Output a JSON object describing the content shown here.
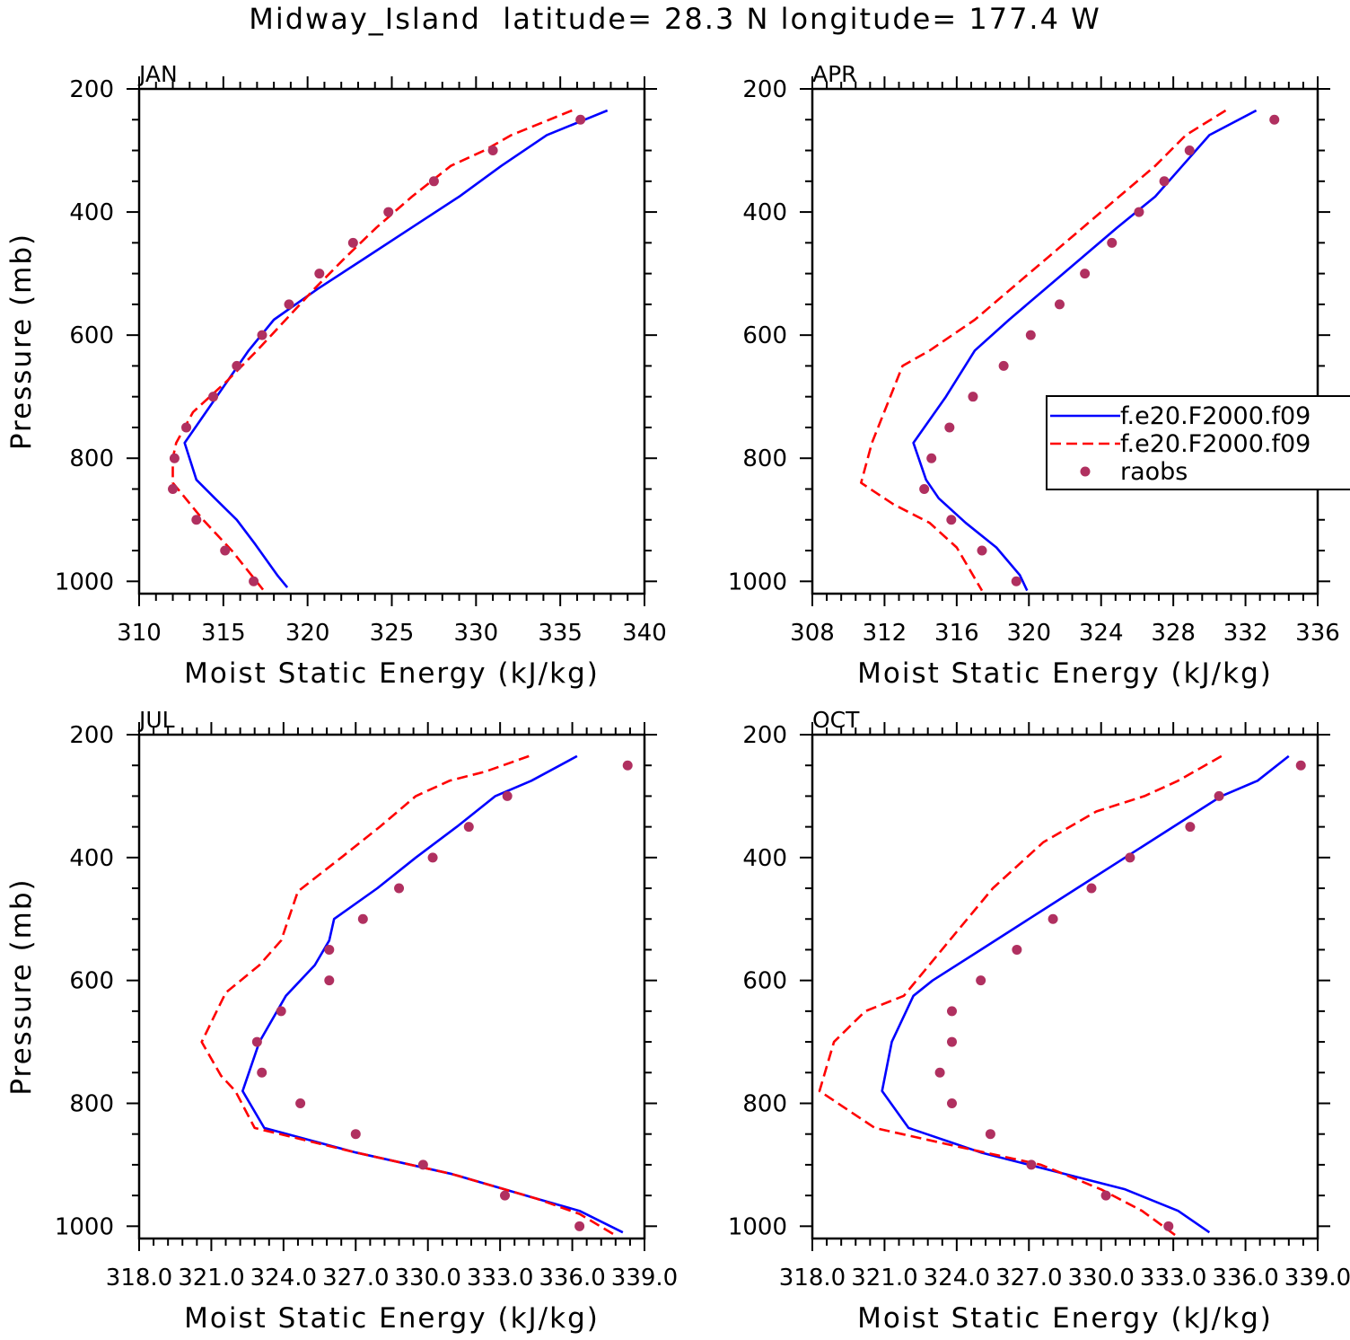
{
  "title": "Midway_Island  latitude= 28.3 N longitude= 177.4 W",
  "colors": {
    "model_solid": "#0000ff",
    "model_dashed": "#ff0000",
    "raobs": "#b03060",
    "axis": "#000000"
  },
  "legend": {
    "entries": [
      {
        "label": "f.e20.F2000.f09",
        "style": "solid"
      },
      {
        "label": "f.e20.F2000.f09",
        "style": "dashed"
      },
      {
        "label": "raobs",
        "style": "marker"
      }
    ]
  },
  "chart_data": [
    {
      "type": "line",
      "panel": "JAN",
      "title": "JAN",
      "xlabel": "Moist Static Energy (kJ/kg)",
      "ylabel": "Pressure (mb)",
      "xlim": [
        310,
        340
      ],
      "ylim": [
        1020,
        200
      ],
      "y_inverted": true,
      "xticks": [
        310,
        315,
        320,
        325,
        330,
        335,
        340
      ],
      "xtick_labels": [
        "310",
        "315",
        "320",
        "325",
        "330",
        "335",
        "340"
      ],
      "yticks": [
        200,
        400,
        600,
        800,
        1000
      ],
      "ytick_labels": [
        "200",
        "400",
        "600",
        "800",
        "1000"
      ],
      "series": [
        {
          "name": "f.e20.F2000.f09",
          "style": "solid",
          "x": [
            337.8,
            334.2,
            331.5,
            329.0,
            326.2,
            323.4,
            320.6,
            318.0,
            316.5,
            314.6,
            312.7,
            313.4,
            314.5,
            315.8,
            316.9,
            318.2,
            318.8
          ],
          "y": [
            235,
            275,
            325,
            375,
            425,
            475,
            525,
            575,
            625,
            700,
            775,
            835,
            865,
            900,
            940,
            990,
            1010
          ]
        },
        {
          "name": "f.e20.F2000.f09",
          "style": "dashed",
          "x": [
            335.7,
            332.1,
            330.5,
            328.5,
            326.2,
            324.1,
            322.2,
            320.4,
            318.7,
            317.0,
            315.2,
            313.2,
            312.2,
            312.0,
            312.0,
            313.8,
            315.5,
            317.4
          ],
          "y": [
            235,
            275,
            300,
            325,
            375,
            425,
            475,
            525,
            575,
            625,
            675,
            725,
            775,
            800,
            840,
            900,
            950,
            1015
          ]
        },
        {
          "name": "raobs",
          "style": "marker",
          "x": [
            336.2,
            331.0,
            327.5,
            324.8,
            322.7,
            320.7,
            318.9,
            317.3,
            315.8,
            314.4,
            312.8,
            312.1,
            312.0,
            313.4,
            315.1,
            316.8
          ],
          "y": [
            250,
            300,
            350,
            400,
            450,
            500,
            550,
            600,
            650,
            700,
            750,
            800,
            850,
            900,
            950,
            1000
          ]
        }
      ]
    },
    {
      "type": "line",
      "panel": "APR",
      "title": "APR",
      "xlabel": "Moist Static Energy (kJ/kg)",
      "ylabel": "",
      "xlim": [
        308,
        336
      ],
      "ylim": [
        1020,
        200
      ],
      "y_inverted": true,
      "xticks": [
        308,
        312,
        316,
        320,
        324,
        328,
        332,
        336
      ],
      "xtick_labels": [
        "308",
        "312",
        "316",
        "320",
        "324",
        "328",
        "332",
        "336"
      ],
      "yticks": [
        200,
        400,
        600,
        800,
        1000
      ],
      "ytick_labels": [
        "200",
        "400",
        "600",
        "800",
        "1000"
      ],
      "series": [
        {
          "name": "f.e20.F2000.f09",
          "style": "solid",
          "x": [
            332.6,
            330.0,
            328.5,
            327.0,
            324.9,
            322.9,
            320.9,
            318.9,
            317.0,
            315.4,
            313.6,
            314.3,
            315.0,
            316.5,
            318.2,
            319.5,
            319.9
          ],
          "y": [
            235,
            275,
            325,
            375,
            425,
            475,
            525,
            575,
            625,
            700,
            775,
            835,
            865,
            905,
            945,
            990,
            1015
          ]
        },
        {
          "name": "f.e20.F2000.f09",
          "style": "dashed",
          "x": [
            330.9,
            328.7,
            327.0,
            325.0,
            323.0,
            321.0,
            319.0,
            317.0,
            314.5,
            313.0,
            311.3,
            310.7,
            312.5,
            314.5,
            316.0,
            317.4
          ],
          "y": [
            235,
            275,
            325,
            375,
            425,
            475,
            525,
            575,
            625,
            650,
            775,
            840,
            875,
            905,
            945,
            1015
          ]
        },
        {
          "name": "raobs",
          "style": "marker",
          "x": [
            333.6,
            328.9,
            327.5,
            326.1,
            324.6,
            323.1,
            321.7,
            320.1,
            318.6,
            316.9,
            315.6,
            314.6,
            314.2,
            315.7,
            317.4,
            319.3
          ],
          "y": [
            250,
            300,
            350,
            400,
            450,
            500,
            550,
            600,
            650,
            700,
            750,
            800,
            850,
            900,
            950,
            1000
          ]
        }
      ]
    },
    {
      "type": "line",
      "panel": "JUL",
      "title": "JUL",
      "xlabel": "Moist Static Energy (kJ/kg)",
      "ylabel": "Pressure (mb)",
      "xlim": [
        318.0,
        339.0
      ],
      "ylim": [
        1020,
        200
      ],
      "y_inverted": true,
      "xticks": [
        318.0,
        321.0,
        324.0,
        327.0,
        330.0,
        333.0,
        336.0,
        339.0
      ],
      "xtick_labels": [
        "318.0",
        "321.0",
        "324.0",
        "327.0",
        "330.0",
        "333.0",
        "336.0",
        "339.0"
      ],
      "yticks": [
        200,
        400,
        600,
        800,
        1000
      ],
      "ytick_labels": [
        "200",
        "400",
        "600",
        "800",
        "1000"
      ],
      "series": [
        {
          "name": "f.e20.F2000.f09",
          "style": "solid",
          "x": [
            336.2,
            334.3,
            332.8,
            331.2,
            329.5,
            327.9,
            326.1,
            325.9,
            325.3,
            324.1,
            323.0,
            322.3,
            323.2,
            327.0,
            331.0,
            334.5,
            336.3,
            338.1
          ],
          "y": [
            235,
            275,
            300,
            350,
            400,
            450,
            500,
            535,
            575,
            625,
            700,
            780,
            840,
            880,
            915,
            955,
            975,
            1010
          ]
        },
        {
          "name": "f.e20.F2000.f09",
          "style": "dashed",
          "x": [
            334.2,
            332.4,
            330.9,
            329.5,
            328.0,
            326.4,
            324.6,
            323.9,
            323.0,
            321.6,
            320.6,
            321.4,
            322.0,
            322.8,
            327.0,
            331.0,
            334.5,
            336.3,
            337.8
          ],
          "y": [
            235,
            260,
            275,
            300,
            350,
            400,
            455,
            535,
            575,
            620,
            700,
            755,
            780,
            840,
            880,
            915,
            955,
            980,
            1015
          ]
        },
        {
          "name": "raobs",
          "style": "marker",
          "x": [
            338.3,
            333.3,
            331.7,
            330.2,
            328.8,
            327.3,
            325.9,
            325.9,
            323.9,
            322.9,
            323.1,
            324.7,
            327.0,
            329.8,
            333.2,
            336.3
          ],
          "y": [
            250,
            300,
            350,
            400,
            450,
            500,
            550,
            600,
            650,
            700,
            750,
            800,
            850,
            900,
            950,
            1000
          ]
        }
      ]
    },
    {
      "type": "line",
      "panel": "OCT",
      "title": "OCT",
      "xlabel": "Moist Static Energy (kJ/kg)",
      "ylabel": "",
      "xlim": [
        318.0,
        339.0
      ],
      "ylim": [
        1020,
        200
      ],
      "y_inverted": true,
      "xticks": [
        318.0,
        321.0,
        324.0,
        327.0,
        330.0,
        333.0,
        336.0,
        339.0
      ],
      "xtick_labels": [
        "318.0",
        "321.0",
        "324.0",
        "327.0",
        "330.0",
        "333.0",
        "336.0",
        "339.0"
      ],
      "yticks": [
        200,
        400,
        600,
        800,
        1000
      ],
      "ytick_labels": [
        "200",
        "400",
        "600",
        "800",
        "1000"
      ],
      "series": [
        {
          "name": "f.e20.F2000.f09",
          "style": "solid",
          "x": [
            337.8,
            336.5,
            335.0,
            333.0,
            331.0,
            329.0,
            327.0,
            325.0,
            323.0,
            322.2,
            321.3,
            320.9,
            322.0,
            325.0,
            328.0,
            331.0,
            333.2,
            334.5
          ],
          "y": [
            235,
            275,
            300,
            350,
            400,
            450,
            500,
            550,
            600,
            625,
            700,
            780,
            840,
            880,
            910,
            940,
            975,
            1010
          ]
        },
        {
          "name": "f.e20.F2000.f09",
          "style": "dashed",
          "x": [
            335.0,
            333.2,
            331.8,
            329.8,
            327.6,
            325.5,
            323.7,
            321.8,
            320.2,
            318.9,
            318.3,
            320.6,
            324.0,
            327.5,
            330.0,
            331.7,
            333.1
          ],
          "y": [
            235,
            275,
            300,
            325,
            375,
            450,
            535,
            625,
            650,
            700,
            780,
            840,
            870,
            900,
            940,
            975,
            1015
          ]
        },
        {
          "name": "raobs",
          "style": "marker",
          "x": [
            338.3,
            334.9,
            333.7,
            331.2,
            329.6,
            328.0,
            326.5,
            325.0,
            323.8,
            323.8,
            323.3,
            323.8,
            325.4,
            327.1,
            330.2,
            332.8
          ],
          "y": [
            250,
            300,
            350,
            400,
            450,
            500,
            550,
            600,
            650,
            700,
            750,
            800,
            850,
            900,
            950,
            1000
          ]
        }
      ]
    }
  ]
}
